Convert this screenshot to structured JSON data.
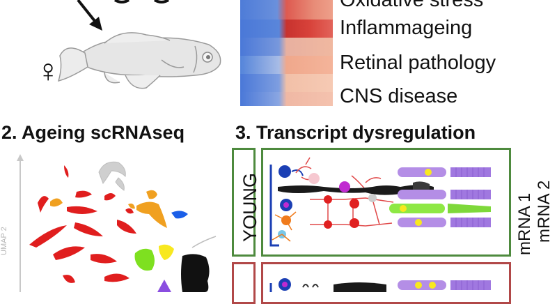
{
  "figure": {
    "female_symbol": "♀",
    "panel2_title": "2. Ageing scRNAseq",
    "panel3_title": "3. Transcript dysregulation",
    "umap_axis_label": "UMAP 2",
    "young_label": "YOUNG",
    "mrna_labels": [
      "mRNA 1",
      "mRNA 2"
    ],
    "heatmap_terms": [
      "Oxidative stress",
      "Inflammageing",
      "Retinal pathology",
      "CNS disease"
    ]
  },
  "colors": {
    "heat_blue": "#4a78d8",
    "heat_red": "#d83a32",
    "young_border": "#4e8a3e",
    "old_border": "#b14848",
    "cluster_red": "#e01e1e",
    "cluster_orange": "#f0a020",
    "cluster_green": "#7ee020",
    "cluster_yellow": "#f8e820",
    "cluster_blue": "#1b5fe8",
    "cluster_black": "#111111",
    "cluster_purple": "#8a4ee0",
    "cone_purple": "#b48ee6",
    "photoreceptor_green": "#8ee844"
  }
}
